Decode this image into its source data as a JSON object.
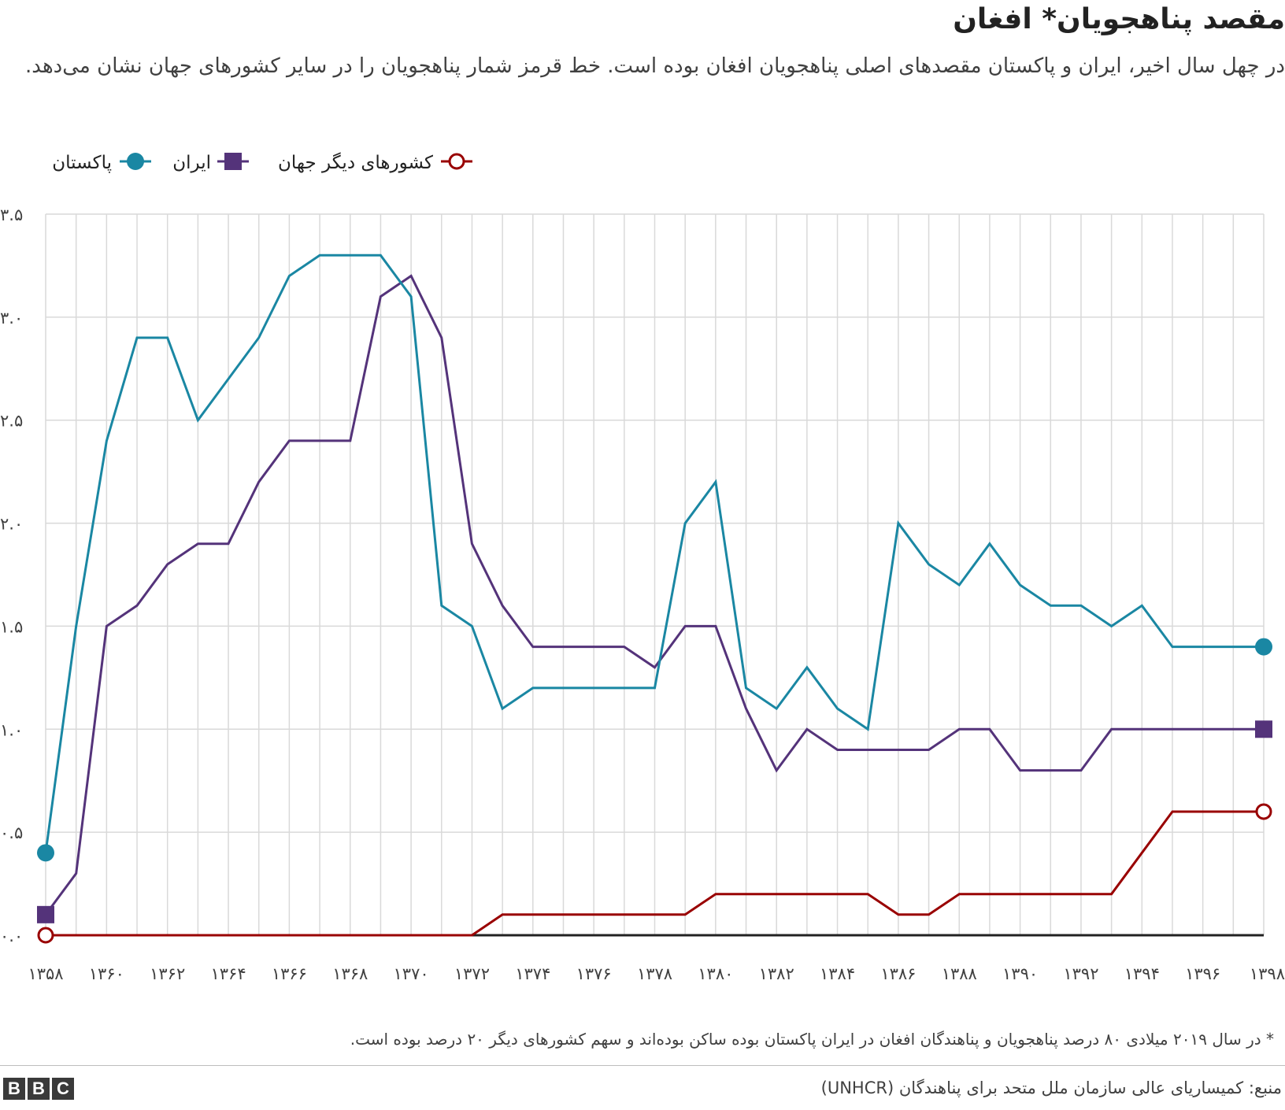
{
  "title": "مقصد پناهجویان* افغان",
  "subtitle": "در چهل سال اخیر، ایران و پاکستان مقصدهای اصلی پناهجویان افغان بوده است. خط قرمز شمار پناهجویان را در سایر کشورهای جهان نشان می‌دهد.",
  "footnote": "* در سال ۲۰۱۹ میلادی ۸۰ درصد پناهجویان و پناهندگان افغان در ایران پاکستان بوده ساکن بوده‌اند و سهم کشورهای دیگر ۲۰ درصد بوده است.",
  "source": "منبع: کمیساریای عالی سازمان ملل متحد برای پناهندگان (UNHCR)",
  "logo": [
    "B",
    "B",
    "C"
  ],
  "colors": {
    "pakistan": "#1a87a3",
    "iran": "#54337a",
    "other": "#990000",
    "grid": "#d9d9d9",
    "axis": "#222222"
  },
  "chart_data": {
    "type": "line",
    "x": [
      1358,
      1359,
      1360,
      1361,
      1362,
      1363,
      1364,
      1365,
      1366,
      1367,
      1368,
      1369,
      1370,
      1371,
      1372,
      1373,
      1374,
      1375,
      1376,
      1377,
      1378,
      1379,
      1380,
      1381,
      1382,
      1383,
      1384,
      1385,
      1386,
      1387,
      1388,
      1389,
      1390,
      1391,
      1392,
      1393,
      1394,
      1395,
      1396,
      1397,
      1398
    ],
    "x_tick_labels": [
      "۱۳۵۸",
      "۱۳۶۰",
      "۱۳۶۲",
      "۱۳۶۴",
      "۱۳۶۶",
      "۱۳۶۸",
      "۱۳۷۰",
      "۱۳۷۲",
      "۱۳۷۴",
      "۱۳۷۶",
      "۱۳۷۸",
      "۱۳۸۰",
      "۱۳۸۲",
      "۱۳۸۴",
      "۱۳۸۶",
      "۱۳۸۸",
      "۱۳۹۰",
      "۱۳۹۲",
      "۱۳۹۴",
      "۱۳۹۶",
      "۱۳۹۸"
    ],
    "y_ticks": [
      0,
      0.5,
      1.0,
      1.5,
      2.0,
      2.5,
      3.0,
      3.5
    ],
    "y_tick_labels": [
      "۰.۰",
      "۰.۵",
      "۱.۰",
      "۱.۵",
      "۲.۰",
      "۲.۵",
      "۳.۰",
      "۳.۵"
    ],
    "ylim": [
      0,
      3.5
    ],
    "xlabel": "",
    "ylabel": "",
    "grid": "vertical and horizontal",
    "legend_position": "top-left",
    "series": [
      {
        "key": "pakistan",
        "name": "پاکستان",
        "marker": "circle",
        "values": [
          0.4,
          1.5,
          2.4,
          2.9,
          2.9,
          2.5,
          2.7,
          2.9,
          3.2,
          3.3,
          3.3,
          3.3,
          3.1,
          1.6,
          1.5,
          1.1,
          1.2,
          1.2,
          1.2,
          1.2,
          1.2,
          2.0,
          2.2,
          1.2,
          1.1,
          1.3,
          1.1,
          1.0,
          2.0,
          1.8,
          1.7,
          1.9,
          1.7,
          1.6,
          1.6,
          1.5,
          1.6,
          1.4,
          1.4,
          1.4,
          1.4
        ]
      },
      {
        "key": "iran",
        "name": "ایران",
        "marker": "square",
        "values": [
          0.1,
          0.3,
          1.5,
          1.6,
          1.8,
          1.9,
          1.9,
          2.2,
          2.4,
          2.4,
          2.4,
          3.1,
          3.2,
          2.9,
          1.9,
          1.6,
          1.4,
          1.4,
          1.4,
          1.4,
          1.3,
          1.5,
          1.5,
          1.1,
          0.8,
          1.0,
          0.9,
          0.9,
          0.9,
          0.9,
          1.0,
          1.0,
          0.8,
          0.8,
          0.8,
          1.0,
          1.0,
          1.0,
          1.0,
          1.0,
          1.0
        ]
      },
      {
        "key": "other",
        "name": "کشورهای دیگر جهان",
        "marker": "open-circle",
        "values": [
          0.0,
          0.0,
          0.0,
          0.0,
          0.0,
          0.0,
          0.0,
          0.0,
          0.0,
          0.0,
          0.0,
          0.0,
          0.0,
          0.0,
          0.0,
          0.1,
          0.1,
          0.1,
          0.1,
          0.1,
          0.1,
          0.1,
          0.2,
          0.2,
          0.2,
          0.2,
          0.2,
          0.2,
          0.1,
          0.1,
          0.2,
          0.2,
          0.2,
          0.2,
          0.2,
          0.2,
          0.4,
          0.6,
          0.6,
          0.6,
          0.6
        ]
      }
    ]
  }
}
